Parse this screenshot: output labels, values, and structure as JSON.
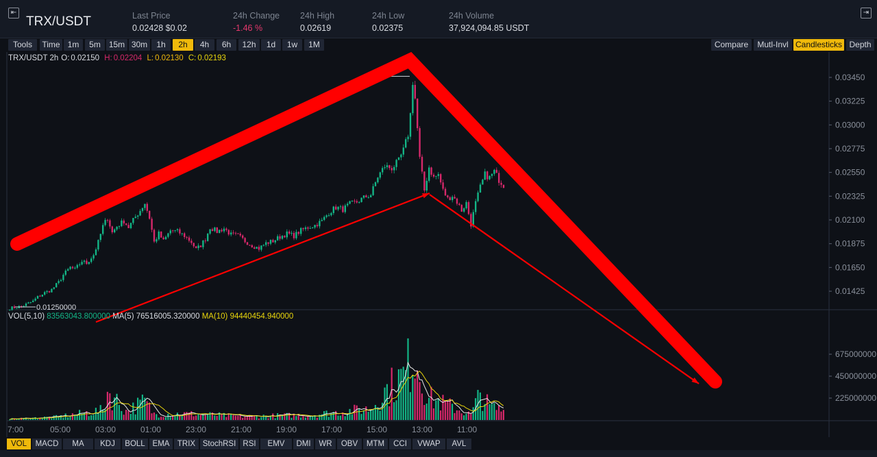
{
  "header": {
    "pair": "TRX/USDT",
    "stats": [
      {
        "label": "Last Price",
        "value": "0.02428 $0.02",
        "tone": "normal"
      },
      {
        "label": "24h Change",
        "value": "-1.46 %",
        "tone": "neg"
      },
      {
        "label": "24h High",
        "value": "0.02619",
        "tone": "normal"
      },
      {
        "label": "24h Low",
        "value": "0.02375",
        "tone": "normal"
      },
      {
        "label": "24h Volume",
        "value": "37,924,094.85 USDT",
        "tone": "normal"
      }
    ],
    "left_icon": "collapse-left-icon",
    "right_icon": "collapse-right-icon"
  },
  "toolbar": {
    "left": [
      "Tools",
      "Time",
      "1m",
      "5m",
      "15m",
      "30m",
      "1h",
      "2h",
      "4h",
      "6h",
      "12h",
      "1d",
      "1w",
      "1M"
    ],
    "active_interval": "2h",
    "right": [
      "Compare",
      "Mutl-Invl",
      "Candlesticks",
      "Depth"
    ],
    "active_view": "Candlesticks"
  },
  "ohlc": {
    "label": "TRX/USDT 2h",
    "o_label": "O:",
    "o": "0.02150",
    "h_label": "H:",
    "h": "0.02204",
    "l_label": "L:",
    "l": "0.02130",
    "c_label": "C:",
    "c": "0.02193"
  },
  "volume_info": {
    "label": "VOL(5,10)",
    "vol": "83563043.800000",
    "ma5_label": "MA(5)",
    "ma5": "76516005.320000",
    "ma10_label": "MA(10)",
    "ma10": "94440454.940000"
  },
  "indicators": [
    "VOL",
    "MACD",
    "MA",
    "KDJ",
    "BOLL",
    "EMA",
    "TRIX",
    "StochRSI",
    "RSI",
    "EMV",
    "DMI",
    "WR",
    "OBV",
    "MTM",
    "CCI",
    "VWAP",
    "AVL"
  ],
  "active_indicator": "VOL",
  "colors": {
    "up": "#13b586",
    "down": "#d6286a",
    "ma5": "#e8e8e8",
    "ma10": "#e8d50c",
    "annotation": "#ff0000",
    "accent": "#f0b90b"
  },
  "chart_data": {
    "type": "candlestick",
    "price_axis": {
      "ticks": [
        "0.03450",
        "0.03225",
        "0.03000",
        "0.02775",
        "0.02550",
        "0.02325",
        "0.02100",
        "0.01875",
        "0.01650",
        "0.01425"
      ],
      "ylim": [
        0.0125,
        0.0356
      ]
    },
    "volume_axis": {
      "ticks": [
        "675000000",
        "450000000",
        "225000000"
      ],
      "ylim": [
        0,
        900000000
      ]
    },
    "time_ticks": [
      "7:00",
      "05:00",
      "03:00",
      "01:00",
      "23:00",
      "21:00",
      "19:00",
      "17:00",
      "15:00",
      "13:00",
      "11:00"
    ],
    "min_marker": {
      "label": "0.01250000",
      "price": 0.0125
    },
    "max_marker": {
      "price": 0.0346
    },
    "close_path": [
      [
        0,
        0.01265
      ],
      [
        5,
        0.0128
      ],
      [
        10,
        0.0133
      ],
      [
        12,
        0.0137
      ],
      [
        15,
        0.0141
      ],
      [
        18,
        0.0144
      ],
      [
        21,
        0.0151
      ],
      [
        23,
        0.0158
      ],
      [
        26,
        0.0165
      ],
      [
        28,
        0.0163
      ],
      [
        31,
        0.0171
      ],
      [
        33,
        0.0169
      ],
      [
        36,
        0.0177
      ],
      [
        38,
        0.0189
      ],
      [
        40,
        0.0204
      ],
      [
        42,
        0.0212
      ],
      [
        44,
        0.0198
      ],
      [
        46,
        0.0204
      ],
      [
        49,
        0.0209
      ],
      [
        51,
        0.0203
      ],
      [
        54,
        0.0213
      ],
      [
        56,
        0.0219
      ],
      [
        58,
        0.0226
      ],
      [
        60,
        0.0212
      ],
      [
        62,
        0.0189
      ],
      [
        64,
        0.0197
      ],
      [
        66,
        0.019
      ],
      [
        69,
        0.02
      ],
      [
        72,
        0.0199
      ],
      [
        75,
        0.0195
      ],
      [
        78,
        0.0189
      ],
      [
        80,
        0.0182
      ],
      [
        82,
        0.0186
      ],
      [
        84,
        0.0192
      ],
      [
        86,
        0.0203
      ],
      [
        89,
        0.0199
      ],
      [
        92,
        0.0202
      ],
      [
        95,
        0.0196
      ],
      [
        98,
        0.0195
      ],
      [
        101,
        0.019
      ],
      [
        104,
        0.0186
      ],
      [
        107,
        0.0183
      ],
      [
        110,
        0.0188
      ],
      [
        113,
        0.019
      ],
      [
        116,
        0.0194
      ],
      [
        119,
        0.0197
      ],
      [
        122,
        0.0195
      ],
      [
        125,
        0.02
      ],
      [
        128,
        0.0203
      ],
      [
        131,
        0.0205
      ],
      [
        134,
        0.0209
      ],
      [
        137,
        0.0217
      ],
      [
        140,
        0.0222
      ],
      [
        143,
        0.022
      ],
      [
        146,
        0.0225
      ],
      [
        149,
        0.0227
      ],
      [
        152,
        0.0231
      ],
      [
        155,
        0.0234
      ],
      [
        158,
        0.0251
      ],
      [
        161,
        0.0261
      ],
      [
        164,
        0.0259
      ],
      [
        167,
        0.0266
      ],
      [
        169,
        0.0276
      ],
      [
        171,
        0.0291
      ],
      [
        172,
        0.031
      ],
      [
        173,
        0.0341
      ],
      [
        174,
        0.0325
      ],
      [
        176,
        0.0268
      ],
      [
        178,
        0.0238
      ],
      [
        180,
        0.026
      ],
      [
        182,
        0.025
      ],
      [
        184,
        0.0253
      ],
      [
        186,
        0.0238
      ],
      [
        188,
        0.023
      ],
      [
        190,
        0.0233
      ],
      [
        192,
        0.0227
      ],
      [
        194,
        0.0219
      ],
      [
        196,
        0.0226
      ],
      [
        198,
        0.0206
      ],
      [
        200,
        0.0226
      ],
      [
        202,
        0.0241
      ],
      [
        204,
        0.0253
      ],
      [
        206,
        0.025
      ],
      [
        208,
        0.0256
      ],
      [
        210,
        0.0248
      ],
      [
        212,
        0.0243
      ]
    ],
    "volume_spikes": [
      [
        0,
        12000000
      ],
      [
        20,
        35000000
      ],
      [
        40,
        110000000
      ],
      [
        42,
        330000000
      ],
      [
        50,
        100000000
      ],
      [
        58,
        210000000
      ],
      [
        62,
        70000000
      ],
      [
        80,
        70000000
      ],
      [
        100,
        40000000
      ],
      [
        130,
        60000000
      ],
      [
        155,
        130000000
      ],
      [
        160,
        300000000
      ],
      [
        170,
        520000000
      ],
      [
        172,
        690000000
      ],
      [
        174,
        800000000
      ],
      [
        176,
        550000000
      ],
      [
        180,
        250000000
      ],
      [
        190,
        150000000
      ],
      [
        198,
        60000000
      ],
      [
        202,
        300000000
      ],
      [
        206,
        150000000
      ],
      [
        212,
        110000000
      ]
    ],
    "bar_count": 213
  },
  "annotations": {
    "thick_lines": [
      [
        [
          0.0,
          0.0187
        ],
        [
          173,
          0.0353
        ]
      ],
      [
        [
          173,
          0.0353
        ],
        [
          1044,
          555
        ]
      ]
    ],
    "thin_arrows": [
      [
        [
          140,
          470
        ],
        [
          627,
          282
        ]
      ],
      [
        [
          627,
          282
        ],
        [
          1020,
          560
        ]
      ]
    ]
  }
}
